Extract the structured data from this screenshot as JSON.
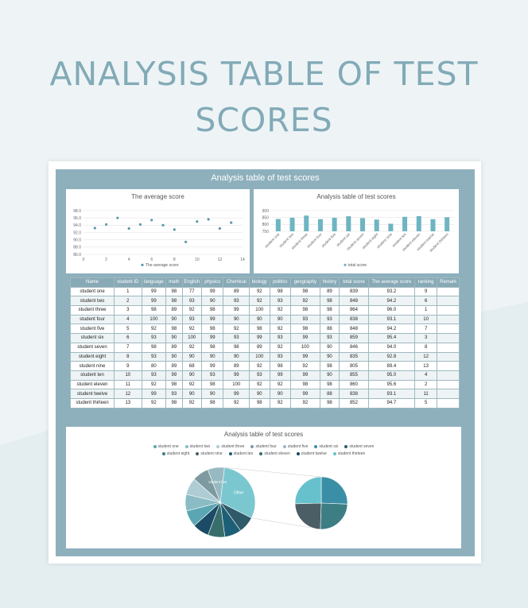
{
  "page": {
    "title": "ANALYSIS TABLE OF TEST SCORES"
  },
  "sheet": {
    "title": "Analysis table of test scores"
  },
  "line_chart": {
    "title": "The average score",
    "legend": "The average score",
    "color": "#5a9aa8",
    "x_ticks": [
      0,
      2,
      4,
      6,
      8,
      10,
      12,
      14
    ],
    "y_ticks": [
      "86.0",
      "88.0",
      "90.0",
      "92.0",
      "94.0",
      "96.0",
      "98.0"
    ]
  },
  "bar_chart": {
    "title": "Analysis table of test scores",
    "legend": "total score",
    "color": "#6db5c2",
    "y_ticks": [
      "750",
      "800",
      "850",
      "900"
    ]
  },
  "pie_chart": {
    "title": "Analysis table of test scores",
    "other_label": "Other",
    "big_label": "student five"
  },
  "table": {
    "headers": [
      "Name",
      "student ID",
      "language",
      "math",
      "English",
      "physics",
      "Chemical",
      "biology",
      "politics",
      "geography",
      "history",
      "total score",
      "The average score",
      "ranking",
      "Remark"
    ],
    "rows": [
      [
        "student one",
        "1",
        "99",
        "98",
        "77",
        "99",
        "89",
        "92",
        "98",
        "98",
        "89",
        "839",
        "93.2",
        "9",
        ""
      ],
      [
        "student two",
        "2",
        "99",
        "98",
        "93",
        "90",
        "93",
        "92",
        "93",
        "92",
        "98",
        "848",
        "94.2",
        "6",
        ""
      ],
      [
        "student three",
        "3",
        "98",
        "89",
        "92",
        "98",
        "99",
        "100",
        "92",
        "98",
        "98",
        "864",
        "96.0",
        "1",
        ""
      ],
      [
        "student four",
        "4",
        "100",
        "90",
        "93",
        "99",
        "90",
        "90",
        "90",
        "93",
        "93",
        "838",
        "93.1",
        "10",
        ""
      ],
      [
        "student five",
        "5",
        "92",
        "98",
        "92",
        "98",
        "92",
        "98",
        "92",
        "98",
        "88",
        "848",
        "94.2",
        "7",
        ""
      ],
      [
        "student six",
        "6",
        "93",
        "90",
        "100",
        "99",
        "93",
        "99",
        "93",
        "99",
        "93",
        "859",
        "95.4",
        "3",
        ""
      ],
      [
        "student seven",
        "7",
        "98",
        "89",
        "92",
        "98",
        "98",
        "89",
        "92",
        "100",
        "90",
        "846",
        "94.0",
        "8",
        ""
      ],
      [
        "student eight",
        "8",
        "93",
        "90",
        "90",
        "90",
        "90",
        "100",
        "93",
        "99",
        "90",
        "835",
        "92.8",
        "12",
        ""
      ],
      [
        "student nine",
        "9",
        "80",
        "89",
        "68",
        "99",
        "89",
        "92",
        "98",
        "92",
        "98",
        "805",
        "89.4",
        "13",
        ""
      ],
      [
        "student ten",
        "10",
        "93",
        "99",
        "90",
        "93",
        "99",
        "93",
        "99",
        "99",
        "90",
        "855",
        "95.0",
        "4",
        ""
      ],
      [
        "student eleven",
        "11",
        "92",
        "98",
        "92",
        "98",
        "100",
        "92",
        "92",
        "98",
        "98",
        "860",
        "95.6",
        "2",
        ""
      ],
      [
        "student twelve",
        "12",
        "99",
        "93",
        "90",
        "90",
        "99",
        "90",
        "90",
        "99",
        "88",
        "838",
        "93.1",
        "11",
        ""
      ],
      [
        "student thirteen",
        "13",
        "92",
        "98",
        "92",
        "98",
        "92",
        "98",
        "92",
        "92",
        "98",
        "852",
        "94.7",
        "5",
        ""
      ]
    ]
  },
  "chart_data": [
    {
      "type": "scatter",
      "title": "The average score",
      "x": [
        1,
        2,
        3,
        4,
        5,
        6,
        7,
        8,
        9,
        10,
        11,
        12,
        13
      ],
      "series": [
        {
          "name": "The average score",
          "values": [
            93.2,
            94.2,
            96.0,
            93.1,
            94.2,
            95.4,
            94.0,
            92.8,
            89.4,
            95.0,
            95.6,
            93.1,
            94.7
          ]
        }
      ],
      "xlim": [
        0,
        14
      ],
      "ylim": [
        86,
        98
      ],
      "grid": true,
      "legend": "bottom"
    },
    {
      "type": "bar",
      "title": "Analysis table of test scores",
      "categories": [
        "student one",
        "student two",
        "student three",
        "student four",
        "student five",
        "student six",
        "student seven",
        "student eight",
        "student nine",
        "student ten",
        "student eleven",
        "student twelve",
        "student thirteen"
      ],
      "series": [
        {
          "name": "total score",
          "values": [
            839,
            848,
            864,
            838,
            848,
            859,
            846,
            835,
            805,
            855,
            860,
            838,
            852
          ]
        }
      ],
      "ylim": [
        750,
        900
      ],
      "grid": true,
      "legend": "bottom"
    },
    {
      "type": "pie",
      "title": "Analysis table of test scores",
      "legend": "top",
      "slices": [
        {
          "label": "student one",
          "value": 839,
          "color": "#5aa6b2"
        },
        {
          "label": "student two",
          "value": 848,
          "color": "#8bbcc5"
        },
        {
          "label": "student three",
          "value": 864,
          "color": "#aeccd3"
        },
        {
          "label": "student four",
          "value": 838,
          "color": "#7e9aa1"
        },
        {
          "label": "student five",
          "value": 848,
          "color": "#97b9c2"
        },
        {
          "label": "student six",
          "value": 859,
          "color": "#3a8fa6"
        },
        {
          "label": "student seven",
          "value": 846,
          "color": "#2e5a69"
        },
        {
          "label": "student eight",
          "value": 835,
          "color": "#3c7e83"
        },
        {
          "label": "student nine",
          "value": 805,
          "color": "#4b5e66"
        },
        {
          "label": "student ten",
          "value": 855,
          "color": "#1d5f77"
        },
        {
          "label": "student eleven",
          "value": 860,
          "color": "#376e6c"
        },
        {
          "label": "student twelve",
          "value": 838,
          "color": "#1b4b66"
        },
        {
          "label": "student thirteen",
          "value": 852,
          "color": "#67c1cd"
        }
      ]
    }
  ]
}
